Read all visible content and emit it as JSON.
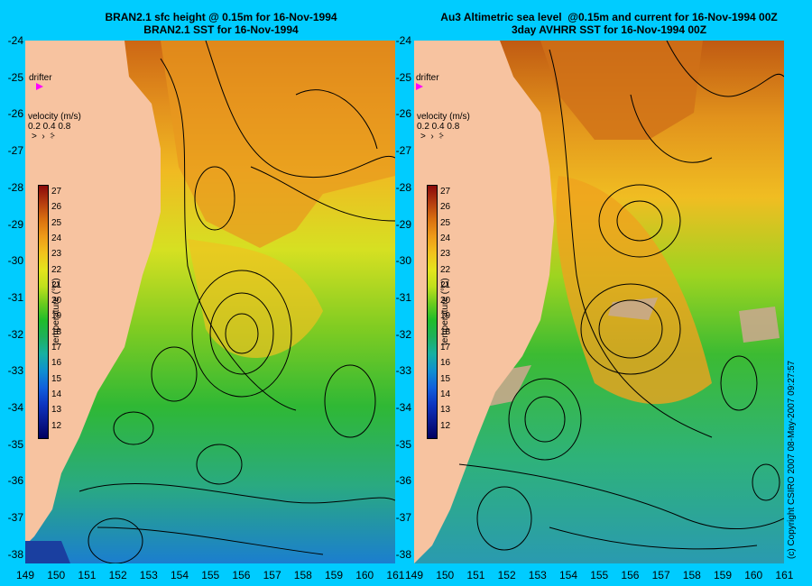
{
  "titles": {
    "left": "BRAN2.1 sfc height @ 0.15m for 16-Nov-1994\nBRAN2.1 SST for 16-Nov-1994",
    "right": "Au3 Altimetric sea level  @0.15m and current for 16-Nov-1994 00Z\n3day AVHRR SST for 16-Nov-1994 00Z"
  },
  "y_axis_labels": [
    "-24",
    "-25",
    "-26",
    "-27",
    "-28",
    "-29",
    "-30",
    "-31",
    "-32",
    "-33",
    "-34",
    "-35",
    "-36",
    "-37",
    "-38"
  ],
  "x_axis_labels_left": [
    "149",
    "150",
    "151",
    "152",
    "153",
    "154",
    "155",
    "156",
    "157",
    "158",
    "159",
    "160",
    "161"
  ],
  "x_axis_labels_right": [
    "149",
    "150",
    "151",
    "152",
    "153",
    "154",
    "155",
    "156",
    "157",
    "158",
    "159",
    "160",
    "161"
  ],
  "legend": {
    "drifter_label": "drifter",
    "velocity_title": "velocity (m/s)",
    "velocity_values": "0.2 0.4 0.8",
    "velocity_arrows": "˃  ›  ⸖",
    "colorbar_title": "temperature (°C)",
    "colorbar_ticks": [
      "27",
      "26",
      "25",
      "24",
      "23",
      "22",
      "21",
      "20",
      "19",
      "18",
      "17",
      "16",
      "15",
      "14",
      "13",
      "12"
    ],
    "colorbar_colors": [
      "#8b0a0a",
      "#b43c0f",
      "#d9700f",
      "#ee9a18",
      "#f2c21c",
      "#e4e41c",
      "#bfe01c",
      "#6ccb1e",
      "#1fbd2a",
      "#1eb05c",
      "#17b0a2",
      "#0f8fd0",
      "#1160dc",
      "#0d35c0",
      "#0a1a90",
      "#000060"
    ]
  },
  "copyright": "(c) Copyright CSIRO 2007  08-May-2007 09:27:57",
  "colors": {
    "background": "#00ccff",
    "land": "#f7c3a0",
    "cloud": "#c8a88c",
    "drifter": "#ff00ff"
  }
}
